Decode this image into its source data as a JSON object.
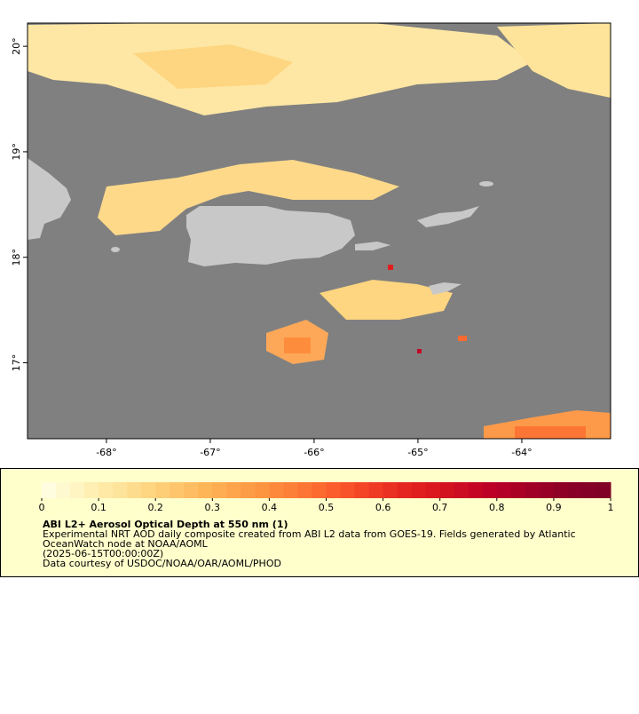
{
  "map": {
    "xlim": [
      -68.76,
      -63.145
    ],
    "ylim": [
      16.28,
      20.22
    ],
    "xticks": [
      {
        "value": -68,
        "label": "-68°"
      },
      {
        "value": -67,
        "label": "-67°"
      },
      {
        "value": -66,
        "label": "-66°"
      },
      {
        "value": -65,
        "label": "-65°"
      },
      {
        "value": -64,
        "label": "-64°"
      }
    ],
    "yticks": [
      {
        "value": 17,
        "label": "17°"
      },
      {
        "value": 18,
        "label": "18°"
      },
      {
        "value": 19,
        "label": "19°"
      },
      {
        "value": 20,
        "label": "20°"
      }
    ]
  },
  "colorbar": {
    "range": [
      0,
      1
    ],
    "ticks": [
      0,
      0.1,
      0.2,
      0.3,
      0.4,
      0.5,
      0.6,
      0.7,
      0.8,
      0.9,
      1
    ],
    "colors": [
      "#fffde0",
      "#fff9d0",
      "#fff5c2",
      "#ffefb3",
      "#ffe9a5",
      "#fee39a",
      "#fedc8d",
      "#fed580",
      "#fece76",
      "#fec56c",
      "#febd62",
      "#feb558",
      "#fead52",
      "#fea54c",
      "#fd9c46",
      "#fd9440",
      "#fd8a3c",
      "#fd8038",
      "#fc7534",
      "#fc6a30",
      "#fb5e2c",
      "#f8522a",
      "#f44627",
      "#ef3a24",
      "#ea3022",
      "#e52620",
      "#e11e1e",
      "#db181d",
      "#d3121f",
      "#cc0c22",
      "#c40624",
      "#bd0026",
      "#b40026",
      "#aa0026",
      "#a10026",
      "#980026",
      "#8f0026",
      "#880026",
      "#840026",
      "#800026"
    ]
  },
  "legend": {
    "title": "ABI L2+ Aerosol Optical Depth at 550 nm (1)",
    "lines": [
      "Experimental NRT AOD daily composite created from ABI L2 data from GOES-19. Fields generated by Atlantic",
      "OceanWatch node at NOAA/AOML",
      "(2025-06-15T00:00:00Z)",
      "Data courtesy of USDOC/NOAA/OAR/AOML/PHOD"
    ]
  }
}
